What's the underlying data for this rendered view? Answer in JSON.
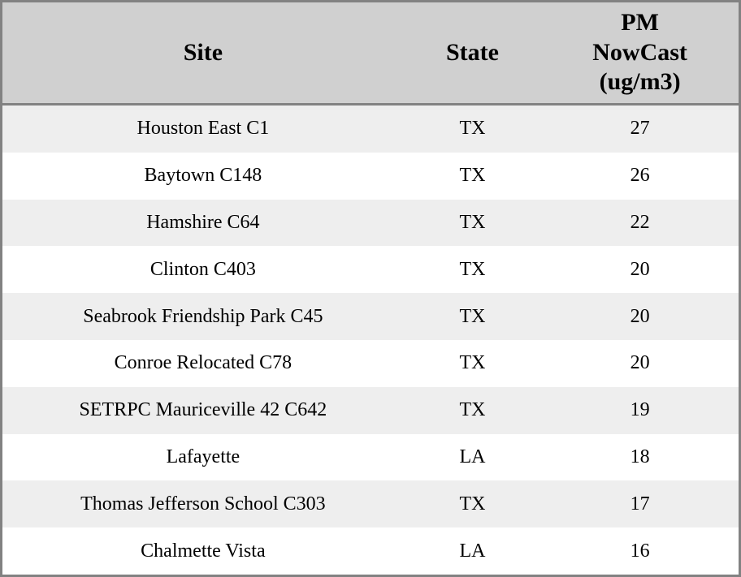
{
  "colors": {
    "header_bg": "#d0d0d0",
    "row_odd_bg": "#eeeeee",
    "row_even_bg": "#ffffff",
    "border": "#828282",
    "text": "#000000"
  },
  "header": {
    "site_label": "Site",
    "state_label": "State",
    "pm_lines": [
      "PM",
      "NowCast",
      "(ug/m3)"
    ]
  },
  "rows": [
    {
      "site": "Houston East C1",
      "state": "TX",
      "pm": "27"
    },
    {
      "site": "Baytown C148",
      "state": "TX",
      "pm": "26"
    },
    {
      "site": "Hamshire C64",
      "state": "TX",
      "pm": "22"
    },
    {
      "site": "Clinton C403",
      "state": "TX",
      "pm": "20"
    },
    {
      "site": "Seabrook Friendship Park C45",
      "state": "TX",
      "pm": "20"
    },
    {
      "site": "Conroe Relocated C78",
      "state": "TX",
      "pm": "20"
    },
    {
      "site": "SETRPC Mauriceville 42 C642",
      "state": "TX",
      "pm": "19"
    },
    {
      "site": "Lafayette",
      "state": "LA",
      "pm": "18"
    },
    {
      "site": "Thomas Jefferson School C303",
      "state": "TX",
      "pm": "17"
    },
    {
      "site": "Chalmette Vista",
      "state": "LA",
      "pm": "16"
    }
  ],
  "chart_data": {
    "type": "table",
    "columns": [
      "Site",
      "State",
      "PM NowCast (ug/m3)"
    ],
    "rows": [
      [
        "Houston East C1",
        "TX",
        27
      ],
      [
        "Baytown C148",
        "TX",
        26
      ],
      [
        "Hamshire C64",
        "TX",
        22
      ],
      [
        "Clinton C403",
        "TX",
        20
      ],
      [
        "Seabrook Friendship Park C45",
        "TX",
        20
      ],
      [
        "Conroe Relocated C78",
        "TX",
        20
      ],
      [
        "SETRPC Mauriceville 42 C642",
        "TX",
        19
      ],
      [
        "Lafayette",
        "LA",
        18
      ],
      [
        "Thomas Jefferson School C303",
        "TX",
        17
      ],
      [
        "Chalmette Vista",
        "LA",
        16
      ]
    ]
  }
}
